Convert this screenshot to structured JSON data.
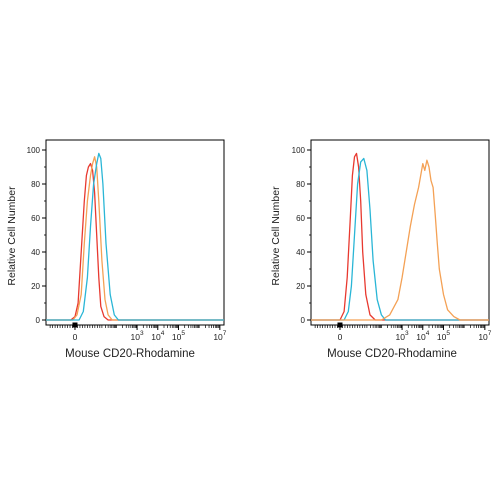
{
  "chart_data": [
    {
      "type": "line",
      "title": "",
      "xlabel": "Mouse CD20-Rhodamine",
      "ylabel": "Relative Cell Number",
      "x_scale": "biexponential",
      "x_tick_labels": [
        {
          "value": 0,
          "base": "0",
          "exp": ""
        },
        {
          "value": 3,
          "base": "10",
          "exp": "3"
        },
        {
          "value": 4,
          "base": "10",
          "exp": "4"
        },
        {
          "value": 5,
          "base": "10",
          "exp": "5"
        },
        {
          "value": 7,
          "base": "10",
          "exp": "7"
        }
      ],
      "y_ticks": [
        0,
        20,
        40,
        60,
        80,
        100
      ],
      "ylim": [
        0,
        100
      ],
      "xlim": [
        -1.4,
        7.2
      ],
      "grid": false,
      "legend": "none",
      "series": [
        {
          "color": "#e8392f",
          "x": [
            -0.2,
            0.0,
            0.15,
            0.3,
            0.45,
            0.55,
            0.65,
            0.75,
            0.85,
            0.95,
            1.05,
            1.15,
            1.25,
            1.4,
            1.6
          ],
          "y": [
            0,
            2,
            10,
            40,
            70,
            85,
            90,
            92,
            88,
            75,
            50,
            25,
            8,
            2,
            0
          ]
        },
        {
          "color": "#f4a155",
          "x": [
            -0.1,
            0.1,
            0.3,
            0.45,
            0.6,
            0.75,
            0.85,
            0.95,
            1.05,
            1.15,
            1.3,
            1.45,
            1.6,
            1.8
          ],
          "y": [
            0,
            3,
            15,
            45,
            70,
            85,
            92,
            96,
            90,
            70,
            35,
            12,
            3,
            0
          ]
        },
        {
          "color": "#2ab6d6",
          "x": [
            0.2,
            0.4,
            0.6,
            0.75,
            0.9,
            1.05,
            1.15,
            1.25,
            1.35,
            1.5,
            1.7,
            1.9,
            2.1
          ],
          "y": [
            0,
            5,
            25,
            55,
            80,
            92,
            98,
            95,
            80,
            45,
            15,
            3,
            0
          ]
        }
      ]
    },
    {
      "type": "line",
      "title": "",
      "xlabel": "Mouse CD20-Rhodamine",
      "ylabel": "Relative Cell Number",
      "x_scale": "biexponential",
      "x_tick_labels": [
        {
          "value": 0,
          "base": "0",
          "exp": ""
        },
        {
          "value": 3,
          "base": "10",
          "exp": "3"
        },
        {
          "value": 4,
          "base": "10",
          "exp": "4"
        },
        {
          "value": 5,
          "base": "10",
          "exp": "5"
        },
        {
          "value": 7,
          "base": "10",
          "exp": "7"
        }
      ],
      "y_ticks": [
        0,
        20,
        40,
        60,
        80,
        100
      ],
      "ylim": [
        0,
        100
      ],
      "xlim": [
        -1.4,
        7.2
      ],
      "grid": false,
      "legend": "none",
      "series": [
        {
          "color": "#e8392f",
          "x": [
            0.0,
            0.2,
            0.35,
            0.5,
            0.6,
            0.7,
            0.8,
            0.9,
            1.0,
            1.1,
            1.25,
            1.45,
            1.7
          ],
          "y": [
            0,
            5,
            25,
            60,
            85,
            96,
            98,
            90,
            70,
            40,
            15,
            3,
            0
          ]
        },
        {
          "color": "#2ab6d6",
          "x": [
            0.2,
            0.4,
            0.55,
            0.7,
            0.85,
            1.0,
            1.15,
            1.3,
            1.45,
            1.6,
            1.8,
            2.0,
            2.2
          ],
          "y": [
            0,
            5,
            20,
            50,
            80,
            93,
            95,
            88,
            65,
            35,
            12,
            3,
            0
          ]
        },
        {
          "color": "#f4a155",
          "x": [
            2.0,
            2.4,
            2.8,
            3.0,
            3.2,
            3.4,
            3.6,
            3.8,
            3.9,
            4.0,
            4.1,
            4.2,
            4.3,
            4.4,
            4.5,
            4.6,
            4.7,
            4.8,
            5.0,
            5.2,
            5.5,
            5.8
          ],
          "y": [
            0,
            3,
            12,
            25,
            40,
            55,
            68,
            78,
            85,
            92,
            88,
            94,
            90,
            82,
            78,
            62,
            45,
            30,
            15,
            6,
            2,
            0
          ]
        }
      ]
    }
  ]
}
